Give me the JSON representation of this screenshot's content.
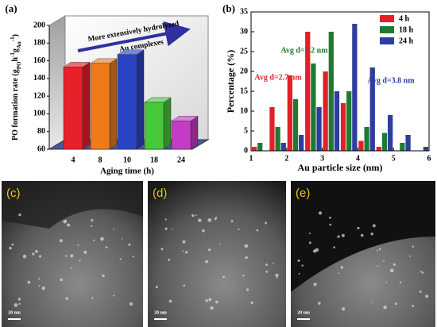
{
  "chart_data": [
    {
      "type": "bar3d",
      "panel": "(a)",
      "ylabel_parts": [
        "PO formation rate (g",
        "PO",
        "h",
        "-1",
        "g",
        "Au",
        "-1",
        ")"
      ],
      "xlabel": "Aging time (h)",
      "annotations": [
        "More extensively hydrolyzed",
        "Au complexes"
      ],
      "categories": [
        "4",
        "8",
        "10",
        "18",
        "24"
      ],
      "values": [
        153,
        157,
        167,
        113,
        92
      ],
      "colors": [
        "#e8202a",
        "#f07a1a",
        "#2b44c4",
        "#46c83a",
        "#c43cc4"
      ],
      "ylim": [
        60,
        200
      ],
      "yticks": [
        60,
        80,
        100,
        120,
        140,
        160,
        180,
        200
      ]
    },
    {
      "type": "bar",
      "panel": "(b)",
      "xlabel": "Au particle size (nm)",
      "ylabel": "Percentage (%)",
      "x": [
        1.25,
        1.75,
        2.25,
        2.75,
        3.25,
        3.75,
        4.25,
        4.75,
        5.25,
        5.75
      ],
      "series": [
        {
          "name": "4 h",
          "color": "#e32028",
          "values": [
            1,
            11,
            19,
            30,
            20,
            12,
            2.5,
            1,
            0,
            0
          ]
        },
        {
          "name": "18 h",
          "color": "#1e7a32",
          "values": [
            2,
            6,
            13,
            22,
            30,
            15,
            6,
            4.5,
            2,
            0
          ]
        },
        {
          "name": "24 h",
          "color": "#2e3d9e",
          "values": [
            0,
            2,
            4,
            11,
            15,
            32,
            21,
            9,
            4,
            1
          ]
        }
      ],
      "annotations": [
        {
          "text": "Avg d=2.7 nm",
          "color": "#e32028"
        },
        {
          "text": "Avg d=3.2 nm",
          "color": "#1e7a32"
        },
        {
          "text": "Avg d=3.8 nm",
          "color": "#2e3d9e"
        }
      ],
      "xlim": [
        1,
        6
      ],
      "xticks": [
        1,
        2,
        3,
        4,
        5,
        6
      ],
      "ylim": [
        0,
        35
      ],
      "yticks": [
        0,
        5,
        10,
        15,
        20,
        25,
        30,
        35
      ],
      "legend": "upper right"
    }
  ],
  "images": [
    {
      "label": "(c)",
      "scale_bar": "20 nm"
    },
    {
      "label": "(d)",
      "scale_bar": "20 nm"
    },
    {
      "label": "(e)",
      "scale_bar": "20 nm"
    }
  ]
}
